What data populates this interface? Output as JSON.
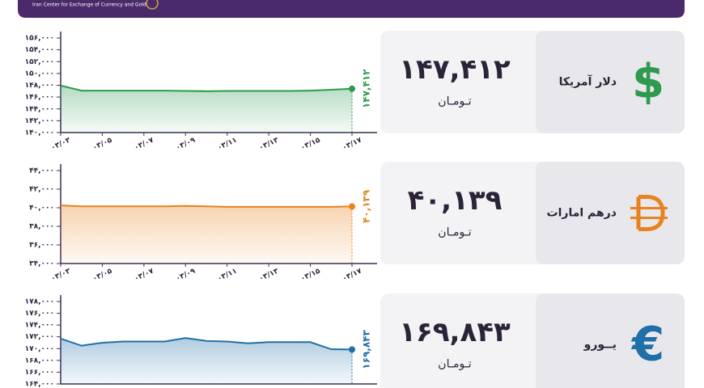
{
  "header": {
    "org": "Iran Center for Exchange of Currency and Gold"
  },
  "chart_data": [
    {
      "type": "line",
      "name": "دلار آمریکا",
      "symbol": "$",
      "unit": "تـومـان",
      "categories": [
        "۰۳/۰۳",
        null,
        "۰۳/۰۵",
        null,
        "۰۳/۰۷",
        null,
        "۰۳/۰۹",
        null,
        "۰۳/۱۱",
        null,
        "۰۳/۱۳",
        null,
        "۰۳/۱۵",
        null,
        "۰۳/۱۷"
      ],
      "series": [
        {
          "name": "دلار آمریکا",
          "color": "#2e9a4f",
          "values": [
            147950,
            147100,
            147100,
            147100,
            147100,
            147100,
            147050,
            147000,
            147050,
            147050,
            147050,
            147050,
            147100,
            147250,
            147412
          ],
          "value_labels": [
            null,
            null,
            null,
            null,
            null,
            null,
            null,
            null,
            null,
            null,
            null,
            null,
            null,
            null,
            "۱۴۷,۴۱۲"
          ]
        }
      ],
      "ylim": [
        140000,
        156000
      ],
      "yticks": [
        {
          "value": 140000,
          "label": "۱۴۰,۰۰۰"
        },
        {
          "value": 142000,
          "label": "۱۴۲,۰۰۰"
        },
        {
          "value": 144000,
          "label": "۱۴۴,۰۰۰"
        },
        {
          "value": 146000,
          "label": "۱۴۶,۰۰۰"
        },
        {
          "value": 148000,
          "label": "۱۴۸,۰۰۰"
        },
        {
          "value": 150000,
          "label": "۱۵۰,۰۰۰"
        },
        {
          "value": 152000,
          "label": "۱۵۲,۰۰۰"
        },
        {
          "value": 154000,
          "label": "۱۵۴,۰۰۰"
        },
        {
          "value": 156000,
          "label": "۱۵۶,۰۰۰"
        }
      ]
    },
    {
      "type": "line",
      "name": "درهم امارات",
      "unit": "تـومـان",
      "categories": [
        "۰۳/۰۳",
        null,
        "۰۳/۰۵",
        null,
        "۰۳/۰۷",
        null,
        "۰۳/۰۹",
        null,
        "۰۳/۱۱",
        null,
        "۰۳/۱۳",
        null,
        "۰۳/۱۵",
        null,
        "۰۳/۱۷"
      ],
      "series": [
        {
          "name": "درهم امارات",
          "color": "#e8821e",
          "values": [
            40250,
            40150,
            40150,
            40150,
            40150,
            40150,
            40200,
            40150,
            40100,
            40100,
            40100,
            40100,
            40100,
            40100,
            40139
          ],
          "value_labels": [
            null,
            null,
            null,
            null,
            null,
            null,
            null,
            null,
            null,
            null,
            null,
            null,
            null,
            null,
            "۴۰,۱۳۹"
          ]
        }
      ],
      "ylim": [
        34000,
        44000
      ],
      "yticks": [
        {
          "value": 34000,
          "label": "۳۴,۰۰۰"
        },
        {
          "value": 36000,
          "label": "۳۶,۰۰۰"
        },
        {
          "value": 38000,
          "label": "۳۸,۰۰۰"
        },
        {
          "value": 40000,
          "label": "۴۰,۰۰۰"
        },
        {
          "value": 42000,
          "label": "۴۲,۰۰۰"
        },
        {
          "value": 44000,
          "label": "۴۴,۰۰۰"
        }
      ]
    },
    {
      "type": "line",
      "name": "یــورو",
      "symbol": "€",
      "unit": "تـومـان",
      "series": [
        {
          "name": "یــورو",
          "color": "#1f6fa8",
          "values": [
            171700,
            170500,
            171000,
            171200,
            171200,
            171200,
            171800,
            171300,
            171200,
            170900,
            171100,
            171100,
            171100,
            169900,
            169843
          ],
          "value_labels": [
            null,
            null,
            null,
            null,
            null,
            null,
            null,
            null,
            null,
            null,
            null,
            null,
            null,
            null,
            "۱۶۹,۸۴۳"
          ]
        }
      ],
      "ylim": [
        164000,
        178000
      ],
      "yticks": [
        {
          "value": 164000,
          "label": "۱۶۴,۰۰۰"
        },
        {
          "value": 166000,
          "label": "۱۶۶,۰۰۰"
        },
        {
          "value": 168000,
          "label": "۱۶۸,۰۰۰"
        },
        {
          "value": 170000,
          "label": "۱۷۰,۰۰۰"
        },
        {
          "value": 172000,
          "label": "۱۷۲,۰۰۰"
        },
        {
          "value": 174000,
          "label": "۱۷۴,۰۰۰"
        },
        {
          "value": 176000,
          "label": "۱۷۶,۰۰۰"
        },
        {
          "value": 178000,
          "label": "۱۷۸,۰۰۰"
        }
      ]
    }
  ]
}
